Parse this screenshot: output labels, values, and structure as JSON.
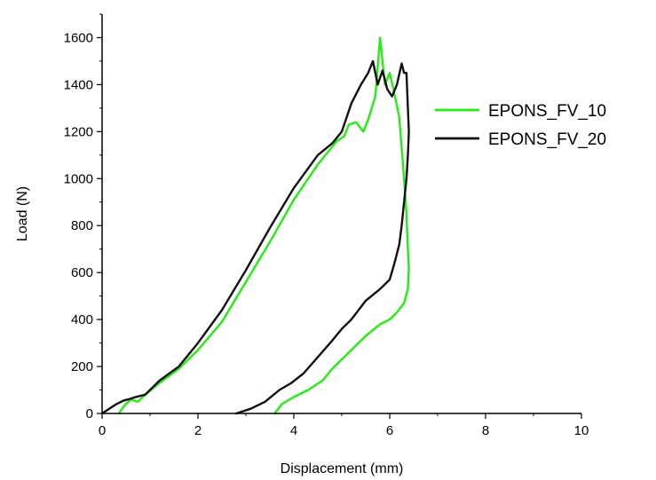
{
  "chart_data": {
    "type": "line",
    "title": "",
    "xlabel": "Displacement (mm)",
    "ylabel": "Load (N)",
    "xlim": [
      0,
      10
    ],
    "ylim": [
      0,
      1700
    ],
    "x_ticks": [
      0,
      2,
      4,
      6,
      8,
      10
    ],
    "y_ticks": [
      0,
      200,
      400,
      600,
      800,
      1000,
      1200,
      1400,
      1600
    ],
    "grid": false,
    "legend_position": "right",
    "series": [
      {
        "name": "EPONS_FV_10",
        "color": "#22ee11",
        "x": [
          0.35,
          0.45,
          0.6,
          0.75,
          0.9,
          1.2,
          1.6,
          2.0,
          2.5,
          3.0,
          3.5,
          4.0,
          4.5,
          4.9,
          5.05,
          5.15,
          5.3,
          5.45,
          5.55,
          5.7,
          5.8,
          5.9,
          6.0,
          6.1,
          6.2,
          6.3,
          6.35,
          6.38,
          6.4,
          6.38,
          6.3,
          6.15,
          6.0,
          5.8,
          5.5,
          5.2,
          5.0,
          4.8,
          4.6,
          4.3,
          4.0,
          3.75,
          3.6
        ],
        "y": [
          0,
          30,
          60,
          50,
          80,
          130,
          190,
          270,
          390,
          560,
          730,
          910,
          1060,
          1160,
          1180,
          1230,
          1240,
          1200,
          1250,
          1350,
          1600,
          1400,
          1450,
          1360,
          1260,
          1000,
          850,
          700,
          620,
          530,
          470,
          430,
          400,
          380,
          330,
          270,
          230,
          190,
          140,
          100,
          70,
          40,
          0
        ]
      },
      {
        "name": "EPONS_FV_20",
        "color": "#111111",
        "x": [
          0,
          0.15,
          0.3,
          0.45,
          0.55,
          0.7,
          0.9,
          1.2,
          1.6,
          2.0,
          2.5,
          3.0,
          3.5,
          4.0,
          4.5,
          4.8,
          5.0,
          5.2,
          5.4,
          5.55,
          5.65,
          5.75,
          5.85,
          5.95,
          6.05,
          6.15,
          6.25,
          6.3,
          6.35,
          6.38,
          6.4,
          6.38,
          6.35,
          6.3,
          6.25,
          6.2,
          6.1,
          6.0,
          5.8,
          5.5,
          5.2,
          5.0,
          4.8,
          4.5,
          4.2,
          3.95,
          3.7,
          3.4,
          3.1,
          2.8
        ],
        "y": [
          0,
          20,
          40,
          55,
          60,
          70,
          80,
          140,
          200,
          300,
          440,
          610,
          790,
          960,
          1100,
          1150,
          1200,
          1320,
          1400,
          1450,
          1500,
          1400,
          1460,
          1380,
          1350,
          1400,
          1490,
          1450,
          1450,
          1300,
          1200,
          1100,
          1000,
          900,
          800,
          720,
          640,
          570,
          530,
          480,
          400,
          360,
          310,
          240,
          170,
          130,
          100,
          50,
          20,
          0
        ]
      }
    ]
  }
}
